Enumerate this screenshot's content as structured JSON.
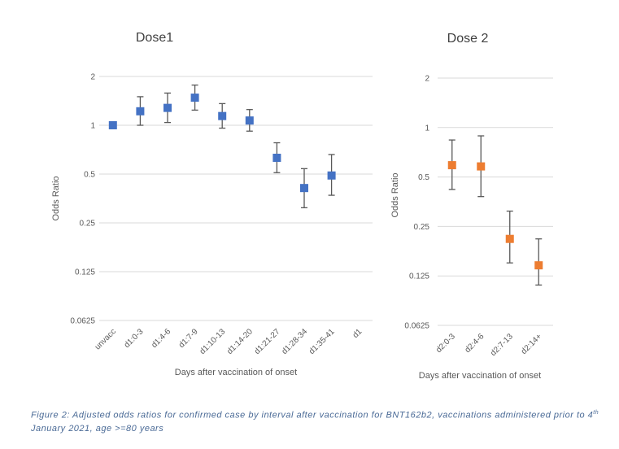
{
  "chart_data": [
    {
      "type": "scatter",
      "title": "Dose1",
      "xlabel": "Days after vaccination of onset",
      "ylabel": "Odds Ratio",
      "yscale": "log2",
      "yticks": [
        "2",
        "1",
        "0.5",
        "0.25",
        "0.125",
        "0.0625"
      ],
      "ylim": [
        0.0625,
        2
      ],
      "color": "#4472c4",
      "categories": [
        "unvacc",
        "d1:0-3",
        "d1:4-6",
        "d1:7-9",
        "d1:10-13",
        "d1:14-20",
        "d1:21-27",
        "d1:28-34",
        "d1:35-41",
        "d1"
      ],
      "points": [
        {
          "x": "unvacc",
          "y": 1.0,
          "low": 1.0,
          "high": 1.0
        },
        {
          "x": "d1:0-3",
          "y": 1.22,
          "low": 1.0,
          "high": 1.5
        },
        {
          "x": "d1:4-6",
          "y": 1.28,
          "low": 1.04,
          "high": 1.58
        },
        {
          "x": "d1:7-9",
          "y": 1.48,
          "low": 1.24,
          "high": 1.77
        },
        {
          "x": "d1:10-13",
          "y": 1.14,
          "low": 0.96,
          "high": 1.36
        },
        {
          "x": "d1:14-20",
          "y": 1.07,
          "low": 0.92,
          "high": 1.25
        },
        {
          "x": "d1:21-27",
          "y": 0.63,
          "low": 0.51,
          "high": 0.78
        },
        {
          "x": "d1:28-34",
          "y": 0.41,
          "low": 0.31,
          "high": 0.54
        },
        {
          "x": "d1:35-41",
          "y": 0.49,
          "low": 0.37,
          "high": 0.66
        }
      ]
    },
    {
      "type": "scatter",
      "title": "Dose 2",
      "xlabel": "Days after vaccination of onset",
      "ylabel": "Odds Ratio",
      "yscale": "log2",
      "yticks": [
        "2",
        "1",
        "0.5",
        "0.25",
        "0.125",
        "0.0625"
      ],
      "ylim": [
        0.0625,
        2
      ],
      "color": "#ed7d31",
      "categories": [
        "d2:0-3",
        "d2:4-6",
        "d2:7-13",
        "d2:14+"
      ],
      "points": [
        {
          "x": "d2:0-3",
          "y": 0.59,
          "low": 0.42,
          "high": 0.84
        },
        {
          "x": "d2:4-6",
          "y": 0.58,
          "low": 0.38,
          "high": 0.89
        },
        {
          "x": "d2:7-13",
          "y": 0.21,
          "low": 0.15,
          "high": 0.31
        },
        {
          "x": "d2:14+",
          "y": 0.145,
          "low": 0.11,
          "high": 0.21
        }
      ]
    }
  ],
  "caption": {
    "before_sup": "Figure 2: Adjusted odds ratios for confirmed case by interval after vaccination for BNT162b2, vaccinations administered prior to 4",
    "sup": "th",
    "after_sup": " January 2021, age >=80 years"
  }
}
